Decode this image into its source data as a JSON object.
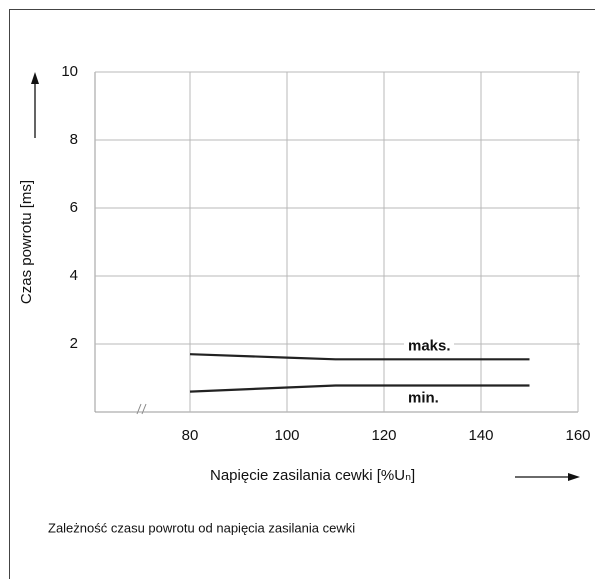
{
  "chart_data": {
    "type": "line",
    "y_label": "Czas powrotu [ms]",
    "x_label": "Napięcie zasilania cewki [%Uₙ]",
    "caption": "Zależność czasu powrotu od napięcia zasilania cewki",
    "x": [
      80,
      100,
      110,
      150
    ],
    "series": [
      {
        "name": "maks.",
        "color": "#222222",
        "values": [
          1.7,
          1.6,
          1.55,
          1.55
        ]
      },
      {
        "name": "min.",
        "color": "#222222",
        "values": [
          0.6,
          0.72,
          0.78,
          0.78
        ]
      }
    ],
    "xlim": [
      60,
      160
    ],
    "xticks": [
      80,
      100,
      120,
      140,
      160
    ],
    "ylim": [
      0,
      10
    ],
    "yticks": [
      2,
      4,
      6,
      8,
      10
    ],
    "grid": true
  }
}
